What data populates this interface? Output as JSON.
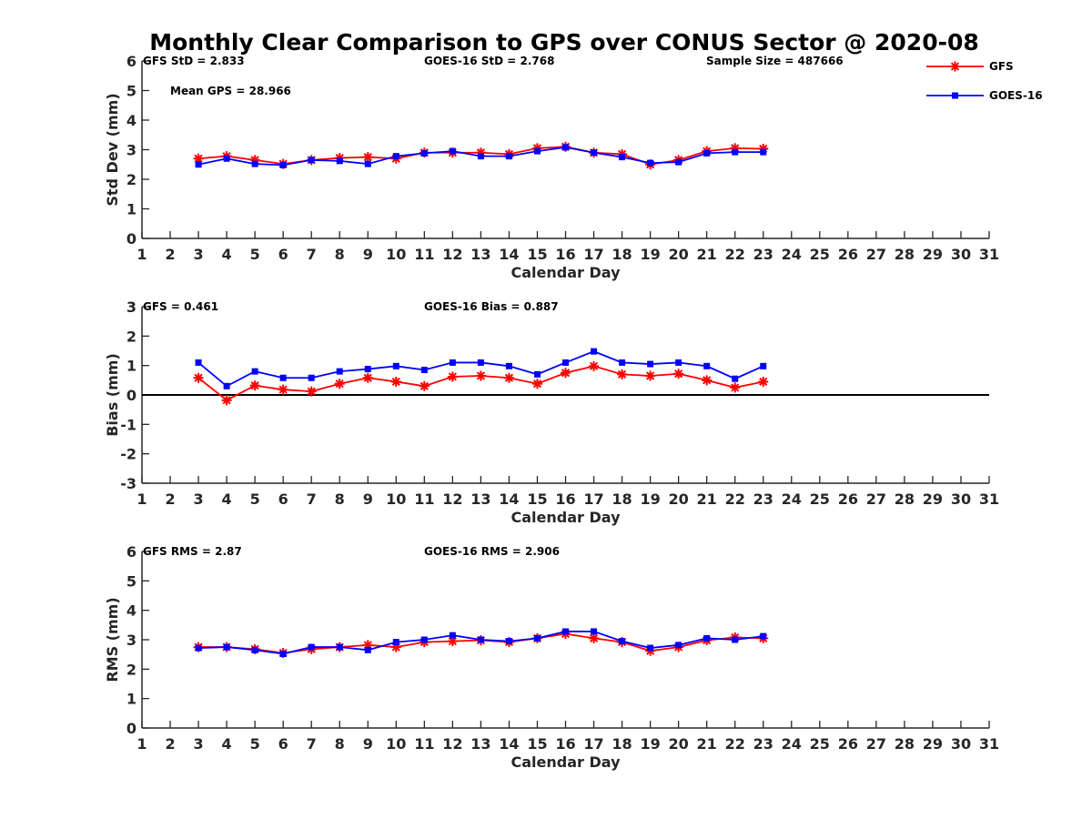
{
  "figure": {
    "title": "Monthly Clear Comparison to GPS over CONUS Sector @ 2020-08"
  },
  "legend": {
    "position": "top-right",
    "items": [
      {
        "label": "GFS",
        "color": "#ff0000",
        "marker": "star"
      },
      {
        "label": "GOES-16",
        "color": "#0000ff",
        "marker": "square"
      }
    ]
  },
  "chart_data": [
    {
      "type": "line",
      "xlabel": "Calendar Day",
      "ylabel": "Std Dev (mm)",
      "xlim": [
        1,
        31
      ],
      "ylim": [
        0,
        6
      ],
      "xticks": [
        1,
        2,
        3,
        4,
        5,
        6,
        7,
        8,
        9,
        10,
        11,
        12,
        13,
        14,
        15,
        16,
        17,
        18,
        19,
        20,
        21,
        22,
        23,
        24,
        25,
        26,
        27,
        28,
        29,
        30,
        31
      ],
      "yticks": [
        0,
        1,
        2,
        3,
        4,
        5,
        6
      ],
      "zero_line": false,
      "annotations": [
        {
          "text": "GFS StD = 2.833",
          "anchor": "top-left"
        },
        {
          "text": "GOES-16 StD = 2.768",
          "anchor": "top-center"
        },
        {
          "text": "Sample Size = 487666",
          "anchor": "top-right"
        },
        {
          "text": "Mean GPS = 28.966",
          "anchor": "upper-left"
        }
      ],
      "x": [
        3,
        4,
        5,
        6,
        7,
        8,
        9,
        10,
        11,
        12,
        13,
        14,
        15,
        16,
        17,
        18,
        19,
        20,
        21,
        22,
        23
      ],
      "series": [
        {
          "name": "GFS",
          "color": "#ff0000",
          "marker": "star",
          "values": [
            2.7,
            2.78,
            2.65,
            2.52,
            2.65,
            2.72,
            2.75,
            2.7,
            2.9,
            2.9,
            2.9,
            2.85,
            3.05,
            3.1,
            2.9,
            2.85,
            2.5,
            2.65,
            2.95,
            3.05,
            3.03
          ]
        },
        {
          "name": "GOES-16",
          "color": "#0000ff",
          "marker": "square",
          "values": [
            2.5,
            2.7,
            2.52,
            2.48,
            2.65,
            2.62,
            2.52,
            2.78,
            2.88,
            2.95,
            2.78,
            2.78,
            2.95,
            3.08,
            2.9,
            2.75,
            2.55,
            2.58,
            2.88,
            2.92,
            2.92
          ]
        }
      ]
    },
    {
      "type": "line",
      "xlabel": "Calendar Day",
      "ylabel": "Bias (mm)",
      "xlim": [
        1,
        31
      ],
      "ylim": [
        -3,
        3
      ],
      "xticks": [
        1,
        2,
        3,
        4,
        5,
        6,
        7,
        8,
        9,
        10,
        11,
        12,
        13,
        14,
        15,
        16,
        17,
        18,
        19,
        20,
        21,
        22,
        23,
        24,
        25,
        26,
        27,
        28,
        29,
        30,
        31
      ],
      "yticks": [
        -3,
        -2,
        -1,
        0,
        1,
        2,
        3
      ],
      "zero_line": true,
      "annotations": [
        {
          "text": "GFS = 0.461",
          "anchor": "top-left"
        },
        {
          "text": "GOES-16 Bias = 0.887",
          "anchor": "top-center"
        }
      ],
      "x": [
        3,
        4,
        5,
        6,
        7,
        8,
        9,
        10,
        11,
        12,
        13,
        14,
        15,
        16,
        17,
        18,
        19,
        20,
        21,
        22,
        23
      ],
      "series": [
        {
          "name": "GFS",
          "color": "#ff0000",
          "marker": "star",
          "values": [
            0.58,
            -0.18,
            0.32,
            0.18,
            0.12,
            0.38,
            0.58,
            0.45,
            0.3,
            0.62,
            0.65,
            0.58,
            0.38,
            0.75,
            0.98,
            0.7,
            0.65,
            0.72,
            0.5,
            0.25,
            0.45
          ]
        },
        {
          "name": "GOES-16",
          "color": "#0000ff",
          "marker": "square",
          "values": [
            1.1,
            0.3,
            0.8,
            0.58,
            0.58,
            0.8,
            0.88,
            0.98,
            0.85,
            1.1,
            1.1,
            0.98,
            0.7,
            1.1,
            1.48,
            1.1,
            1.05,
            1.1,
            0.98,
            0.55,
            0.98
          ]
        }
      ]
    },
    {
      "type": "line",
      "xlabel": "Calendar Day",
      "ylabel": "RMS (mm)",
      "xlim": [
        1,
        31
      ],
      "ylim": [
        0,
        6
      ],
      "xticks": [
        1,
        2,
        3,
        4,
        5,
        6,
        7,
        8,
        9,
        10,
        11,
        12,
        13,
        14,
        15,
        16,
        17,
        18,
        19,
        20,
        21,
        22,
        23,
        24,
        25,
        26,
        27,
        28,
        29,
        30,
        31
      ],
      "yticks": [
        0,
        1,
        2,
        3,
        4,
        5,
        6
      ],
      "zero_line": false,
      "annotations": [
        {
          "text": "GFS RMS = 2.87",
          "anchor": "top-left"
        },
        {
          "text": "GOES-16 RMS = 2.906",
          "anchor": "top-center"
        }
      ],
      "x": [
        3,
        4,
        5,
        6,
        7,
        8,
        9,
        10,
        11,
        12,
        13,
        14,
        15,
        16,
        17,
        18,
        19,
        20,
        21,
        22,
        23
      ],
      "series": [
        {
          "name": "GFS",
          "color": "#ff0000",
          "marker": "star",
          "values": [
            2.75,
            2.75,
            2.68,
            2.55,
            2.68,
            2.75,
            2.82,
            2.75,
            2.92,
            2.95,
            2.98,
            2.92,
            3.05,
            3.2,
            3.05,
            2.92,
            2.62,
            2.75,
            2.98,
            3.08,
            3.05
          ]
        },
        {
          "name": "GOES-16",
          "color": "#0000ff",
          "marker": "square",
          "values": [
            2.72,
            2.75,
            2.65,
            2.52,
            2.75,
            2.75,
            2.65,
            2.92,
            3.0,
            3.15,
            3.0,
            2.95,
            3.05,
            3.28,
            3.28,
            2.95,
            2.72,
            2.82,
            3.05,
            3.0,
            3.12
          ]
        }
      ]
    }
  ]
}
